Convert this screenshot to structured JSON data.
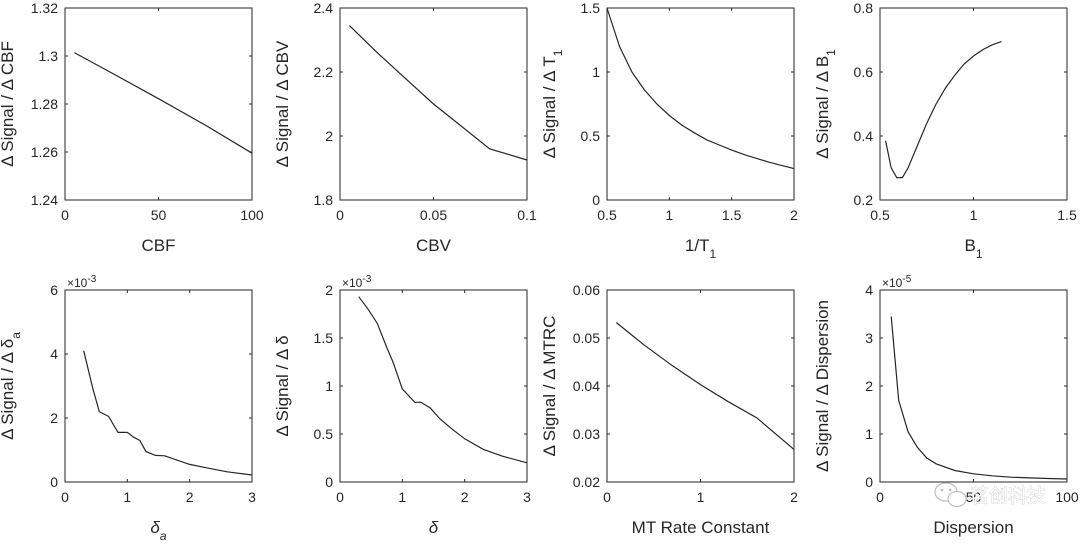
{
  "figure": {
    "background": "#ffffff",
    "axis_color": "#262626",
    "line_color": "#262626"
  },
  "watermark": {
    "text": "茗创科技",
    "icon": "wechat-icon"
  },
  "chart_data": [
    {
      "id": "cbf",
      "type": "line",
      "xlabel": "CBF",
      "ylabel": "Δ Signal / Δ CBF",
      "xlim": [
        0,
        100
      ],
      "ylim": [
        1.24,
        1.32
      ],
      "xticks": [
        0,
        50,
        100
      ],
      "xtick_labels": [
        "0",
        "50",
        "100"
      ],
      "yticks": [
        1.24,
        1.26,
        1.28,
        1.3,
        1.32
      ],
      "ytick_labels": [
        "1.24",
        "1.26",
        "1.28",
        "1.3",
        "1.32"
      ],
      "x": [
        5,
        25,
        50,
        75,
        100
      ],
      "y": [
        1.3014,
        1.2929,
        1.2822,
        1.2712,
        1.2595
      ]
    },
    {
      "id": "cbv",
      "type": "line",
      "xlabel": "CBV",
      "ylabel": "Δ Signal / Δ CBV",
      "xlim": [
        0,
        0.1
      ],
      "ylim": [
        1.8,
        2.4
      ],
      "xticks": [
        0,
        0.05,
        0.1
      ],
      "xtick_labels": [
        "0",
        "0.05",
        "0.1"
      ],
      "yticks": [
        1.8,
        2,
        2.2,
        2.4
      ],
      "ytick_labels": [
        "1.8",
        "2",
        "2.2",
        "2.4"
      ],
      "x": [
        0.005,
        0.02,
        0.035,
        0.05,
        0.065,
        0.08,
        0.1
      ],
      "y": [
        2.345,
        2.26,
        2.18,
        2.1,
        2.03,
        1.96,
        1.925
      ]
    },
    {
      "id": "t1",
      "type": "line",
      "xlabel": "1/T",
      "xlabel_sub": "1",
      "ylabel": "Δ Signal / Δ T",
      "ylabel_sub": "1",
      "xlim": [
        0.5,
        2
      ],
      "ylim": [
        0,
        1.5
      ],
      "xticks": [
        0.5,
        1,
        1.5,
        2
      ],
      "xtick_labels": [
        "0.5",
        "1",
        "1.5",
        "2"
      ],
      "yticks": [
        0,
        0.5,
        1,
        1.5
      ],
      "ytick_labels": [
        "0",
        "0.5",
        "1",
        "1.5"
      ],
      "x": [
        0.5,
        0.6,
        0.7,
        0.8,
        0.9,
        1.0,
        1.1,
        1.2,
        1.3,
        1.4,
        1.5,
        1.6,
        1.7,
        1.8,
        1.9,
        2.0
      ],
      "y": [
        1.5,
        1.2,
        1.0,
        0.86,
        0.75,
        0.66,
        0.585,
        0.525,
        0.47,
        0.43,
        0.39,
        0.355,
        0.325,
        0.295,
        0.27,
        0.245
      ]
    },
    {
      "id": "b1",
      "type": "line",
      "xlabel": "B",
      "xlabel_sub": "1",
      "ylabel": "Δ Signal / Δ B",
      "ylabel_sub": "1",
      "xlim": [
        0.5,
        1.5
      ],
      "ylim": [
        0.2,
        0.8
      ],
      "xticks": [
        0.5,
        1,
        1.5
      ],
      "xtick_labels": [
        "0.5",
        "1",
        "1.5"
      ],
      "yticks": [
        0.2,
        0.4,
        0.6,
        0.8
      ],
      "ytick_labels": [
        "0.2",
        "0.4",
        "0.6",
        "0.8"
      ],
      "x": [
        0.53,
        0.56,
        0.59,
        0.62,
        0.65,
        0.7,
        0.75,
        0.8,
        0.85,
        0.9,
        0.95,
        1.0,
        1.05,
        1.1,
        1.15
      ],
      "y": [
        0.385,
        0.3,
        0.27,
        0.27,
        0.3,
        0.37,
        0.44,
        0.5,
        0.55,
        0.59,
        0.625,
        0.65,
        0.67,
        0.685,
        0.695
      ]
    },
    {
      "id": "delta-a",
      "type": "line",
      "xlabel": "δ",
      "xlabel_sub": "a",
      "ylabel": "Δ Signal / Δ δ",
      "ylabel_sub": "a",
      "exponent": "×10",
      "exponent_power": "-3",
      "xlim": [
        0,
        3
      ],
      "ylim": [
        0,
        6
      ],
      "xticks": [
        0,
        1,
        2,
        3
      ],
      "xtick_labels": [
        "0",
        "1",
        "2",
        "3"
      ],
      "yticks": [
        0,
        2,
        4,
        6
      ],
      "ytick_labels": [
        "0",
        "2",
        "4",
        "6"
      ],
      "x": [
        0.3,
        0.45,
        0.55,
        0.7,
        0.85,
        1.0,
        1.1,
        1.2,
        1.3,
        1.45,
        1.6,
        1.8,
        2.0,
        2.3,
        2.6,
        3.0
      ],
      "y": [
        4.1,
        2.9,
        2.2,
        2.05,
        1.55,
        1.55,
        1.4,
        1.3,
        0.95,
        0.83,
        0.82,
        0.68,
        0.55,
        0.43,
        0.32,
        0.22
      ]
    },
    {
      "id": "delta",
      "type": "line",
      "xlabel": "δ",
      "ylabel": "Δ Signal / Δ δ",
      "exponent": "×10",
      "exponent_power": "-3",
      "xlim": [
        0,
        3
      ],
      "ylim": [
        0,
        2
      ],
      "xticks": [
        0,
        1,
        2,
        3
      ],
      "xtick_labels": [
        "0",
        "1",
        "2",
        "3"
      ],
      "yticks": [
        0,
        0.5,
        1,
        1.5,
        2
      ],
      "ytick_labels": [
        "0",
        "0.5",
        "1",
        "1.5",
        "2"
      ],
      "x": [
        0.3,
        0.45,
        0.6,
        0.75,
        0.85,
        1.0,
        1.1,
        1.2,
        1.3,
        1.45,
        1.6,
        1.8,
        2.0,
        2.3,
        2.6,
        3.0
      ],
      "y": [
        1.93,
        1.8,
        1.65,
        1.4,
        1.25,
        0.97,
        0.9,
        0.83,
        0.83,
        0.77,
        0.66,
        0.55,
        0.45,
        0.34,
        0.27,
        0.2
      ]
    },
    {
      "id": "mtrc",
      "type": "line",
      "xlabel": "MT Rate Constant",
      "ylabel": "Δ Signal / Δ MTRC",
      "xlim": [
        0,
        2
      ],
      "ylim": [
        0.02,
        0.06
      ],
      "xticks": [
        0,
        1,
        2
      ],
      "xtick_labels": [
        "0",
        "1",
        "2"
      ],
      "yticks": [
        0.02,
        0.03,
        0.04,
        0.05,
        0.06
      ],
      "ytick_labels": [
        "0.02",
        "0.03",
        "0.04",
        "0.05",
        "0.06"
      ],
      "x": [
        0.1,
        0.4,
        0.7,
        1.0,
        1.3,
        1.6,
        2.0
      ],
      "y": [
        0.0532,
        0.0485,
        0.0442,
        0.0403,
        0.0367,
        0.0334,
        0.0268
      ]
    },
    {
      "id": "dispersion",
      "type": "line",
      "xlabel": "Dispersion",
      "ylabel": "Δ Signal / Δ Dispersion",
      "exponent": "×10",
      "exponent_power": "-5",
      "xlim": [
        0,
        100
      ],
      "ylim": [
        0,
        4
      ],
      "xticks": [
        0,
        50,
        100
      ],
      "xtick_labels": [
        "0",
        "50",
        "100"
      ],
      "yticks": [
        0,
        1,
        2,
        3,
        4
      ],
      "ytick_labels": [
        "0",
        "1",
        "2",
        "3",
        "4"
      ],
      "x": [
        6,
        10,
        15,
        20,
        25,
        30,
        40,
        50,
        60,
        70,
        80,
        90,
        100
      ],
      "y": [
        3.45,
        1.7,
        1.05,
        0.72,
        0.5,
        0.38,
        0.24,
        0.17,
        0.13,
        0.1,
        0.085,
        0.072,
        0.062
      ]
    }
  ]
}
